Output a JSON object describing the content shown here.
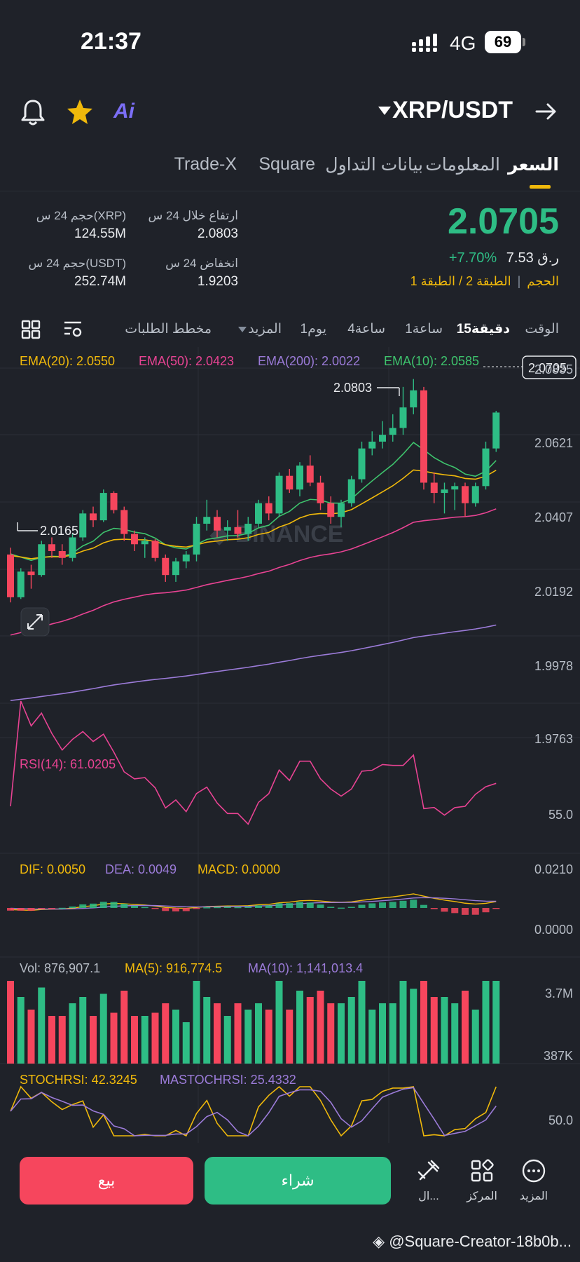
{
  "status_bar": {
    "time": "21:37",
    "network": "4G",
    "battery": "69"
  },
  "header": {
    "pair": "XRP/USDT",
    "ai_label": "Ai"
  },
  "tabs": [
    "السعر",
    "المعلومات",
    "بيانات التداول",
    "Square",
    "Trade-X"
  ],
  "price": {
    "last": "2.0705",
    "change_pct": "+7.70%",
    "fiat": "ر.ق 7.53",
    "tier1": "الطبقة 1",
    "tier2": "الطبقة 2",
    "volume_tag": "الحجم",
    "sep": "/"
  },
  "stats": {
    "high_label": "ارتفاع خلال 24 س",
    "high_value": "2.0803",
    "low_label": "انخفاض 24 س",
    "low_value": "1.9203",
    "vol_base_label": "حجم 24 س(XRP)",
    "vol_base_value": "124.55M",
    "vol_quote_label": "حجم 24 س(USDT)",
    "vol_quote_value": "252.74M"
  },
  "intervals": {
    "time": "الوقت",
    "m15": "15دقيقة",
    "h1": "1ساعة",
    "h4": "4ساعة",
    "d1": "1يوم",
    "more": "المزيد",
    "depth": "مخطط الطلبات"
  },
  "indicators": {
    "ema20": "EMA(20): 2.0550",
    "ema50": "EMA(50): 2.0423",
    "ema200": "EMA(200): 2.0022",
    "ema10": "EMA(10): 2.0585",
    "rsi": "RSI(14): 61.0205",
    "dif": "DIF: 0.0050",
    "dea": "DEA: 0.0049",
    "macd": "MACD: 0.0000",
    "vol": "Vol: 876,907.1",
    "ma5": "MA(5): 916,774.5",
    "ma10": "MA(10): 1,141,013.4",
    "stoch": "STOCHRSI: 42.3245",
    "mastoch": "MASTOCHRSI: 25.4332"
  },
  "axis": {
    "price_ticks": [
      "2.0835",
      "2.0621",
      "2.0407",
      "2.0192",
      "1.9978",
      "1.9763"
    ],
    "current_price_tag": "2.0705",
    "high_marker": "2.0803",
    "low_marker": "2.0165",
    "rsi_tick": "55.0",
    "macd_ticks": [
      "0.0210",
      "0.0000"
    ],
    "vol_ticks": [
      "3.7M",
      "387K"
    ],
    "stoch_tick": "50.0"
  },
  "chart_data": {
    "type": "candlestick",
    "ylim": [
      1.9763,
      2.0835
    ],
    "candles": [
      [
        2.029,
        2.031,
        2.015,
        2.0165
      ],
      [
        2.0165,
        2.025,
        2.016,
        2.024
      ],
      [
        2.024,
        2.026,
        2.019,
        2.023
      ],
      [
        2.023,
        2.033,
        2.0225,
        2.032
      ],
      [
        2.032,
        2.034,
        2.028,
        2.03
      ],
      [
        2.03,
        2.032,
        2.026,
        2.028
      ],
      [
        2.028,
        2.035,
        2.027,
        2.034
      ],
      [
        2.034,
        2.042,
        2.033,
        2.041
      ],
      [
        2.041,
        2.043,
        2.037,
        2.039
      ],
      [
        2.039,
        2.048,
        2.0385,
        2.047
      ],
      [
        2.047,
        2.0475,
        2.041,
        2.042
      ],
      [
        2.042,
        2.043,
        2.033,
        2.035
      ],
      [
        2.035,
        2.036,
        2.03,
        2.032
      ],
      [
        2.032,
        2.034,
        2.028,
        2.033
      ],
      [
        2.033,
        2.0335,
        2.027,
        2.028
      ],
      [
        2.028,
        2.029,
        2.021,
        2.023
      ],
      [
        2.023,
        2.028,
        2.021,
        2.027
      ],
      [
        2.027,
        2.03,
        2.025,
        2.029
      ],
      [
        2.029,
        2.04,
        2.027,
        2.038
      ],
      [
        2.038,
        2.045,
        2.036,
        2.04
      ],
      [
        2.04,
        2.042,
        2.034,
        2.036
      ],
      [
        2.036,
        2.039,
        2.033,
        2.037
      ],
      [
        2.037,
        2.042,
        2.034,
        2.035
      ],
      [
        2.035,
        2.04,
        2.033,
        2.038
      ],
      [
        2.038,
        2.045,
        2.037,
        2.044
      ],
      [
        2.044,
        2.046,
        2.039,
        2.041
      ],
      [
        2.041,
        2.053,
        2.04,
        2.052
      ],
      [
        2.052,
        2.054,
        2.047,
        2.048
      ],
      [
        2.048,
        2.056,
        2.046,
        2.055
      ],
      [
        2.055,
        2.058,
        2.049,
        2.05
      ],
      [
        2.05,
        2.052,
        2.042,
        2.044
      ],
      [
        2.044,
        2.046,
        2.038,
        2.04
      ],
      [
        2.04,
        2.045,
        2.037,
        2.044
      ],
      [
        2.044,
        2.052,
        2.043,
        2.051
      ],
      [
        2.051,
        2.062,
        2.05,
        2.06
      ],
      [
        2.06,
        2.065,
        2.058,
        2.062
      ],
      [
        2.062,
        2.068,
        2.06,
        2.064
      ],
      [
        2.064,
        2.07,
        2.062,
        2.066
      ],
      [
        2.066,
        2.078,
        2.064,
        2.072
      ],
      [
        2.072,
        2.0803,
        2.07,
        2.077
      ],
      [
        2.077,
        2.078,
        2.048,
        2.05
      ],
      [
        2.05,
        2.053,
        2.044,
        2.047
      ],
      [
        2.047,
        2.05,
        2.041,
        2.048
      ],
      [
        2.048,
        2.05,
        2.042,
        2.049
      ],
      [
        2.049,
        2.05,
        2.04,
        2.044
      ],
      [
        2.044,
        2.05,
        2.043,
        2.049
      ],
      [
        2.049,
        2.062,
        2.048,
        2.06
      ],
      [
        2.06,
        2.071,
        2.059,
        2.0705
      ]
    ]
  },
  "bottom_bar": {
    "sell": "بيع",
    "buy": "شراء",
    "item1": "ال...",
    "item2": "المركز",
    "item3": "المزيد"
  },
  "watermark": "@Square-Creator-18b0b..."
}
